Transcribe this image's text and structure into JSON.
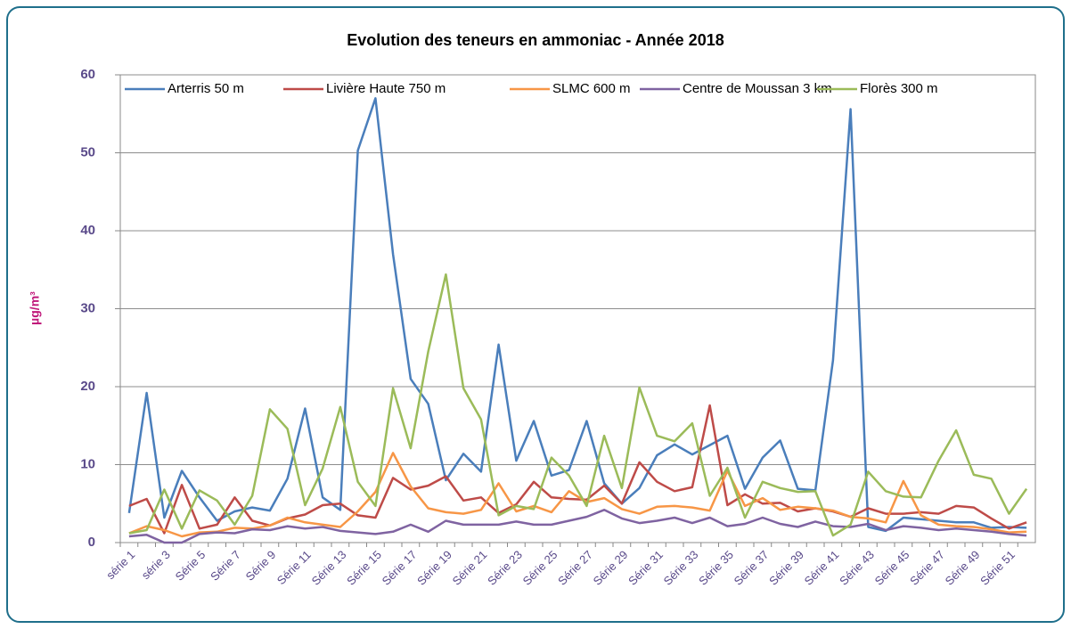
{
  "chart_data": {
    "type": "line",
    "title": "Evolution des teneurs en ammoniac - Année 2018",
    "y_label": "µg/m³",
    "categories": [
      "série 1",
      null,
      "série 3",
      null,
      "Série 5",
      null,
      "Série 7",
      null,
      "Série 9",
      null,
      "Série 11",
      null,
      "Série 13",
      null,
      "Série 15",
      null,
      "Série 17",
      null,
      "Série 19",
      null,
      "Série 21",
      null,
      "Série 23",
      null,
      "Série 25",
      null,
      "Série 27",
      null,
      "Série 29",
      null,
      "Série 31",
      null,
      "Série 33",
      null,
      "Série 35",
      null,
      "Série 37",
      null,
      "Série 39",
      null,
      "Série 41",
      null,
      "Série 43",
      null,
      "Série 45",
      null,
      "Série 47",
      null,
      "Série 49",
      null,
      "Série 51",
      null
    ],
    "series": [
      {
        "name": "Arterris 50 m",
        "color": "#4a7ebb",
        "values": [
          3.8,
          19.2,
          3.2,
          9.2,
          5.8,
          2.8,
          4,
          4.5,
          4.1,
          8.2,
          17.2,
          5.8,
          4.2,
          50.3,
          57,
          37,
          21,
          17.8,
          8,
          11.4,
          9.1,
          25.4,
          10.5,
          15.6,
          8.6,
          9.3,
          15.6,
          7.6,
          5,
          7,
          11.2,
          12.6,
          11.3,
          12.5,
          13.7,
          6.9,
          10.9,
          13.1,
          6.9,
          6.7,
          23.4,
          55.6,
          2,
          1.5,
          3.2,
          3,
          2.8,
          2.6,
          2.6,
          1.9,
          2,
          1.9
        ]
      },
      {
        "name": "Livière Haute 750 m",
        "color": "#be4b48",
        "values": [
          4.7,
          5.6,
          1.2,
          7.4,
          1.8,
          2.3,
          5.8,
          2.8,
          2.2,
          3.1,
          3.6,
          4.8,
          5,
          3.5,
          3.2,
          8.3,
          6.8,
          7.3,
          8.5,
          5.4,
          5.8,
          3.8,
          4.9,
          7.8,
          5.8,
          5.6,
          5.5,
          7.3,
          5,
          10.3,
          7.8,
          6.6,
          7.1,
          17.6,
          4.8,
          6.2,
          5,
          5.1,
          4,
          4.4,
          4,
          3.3,
          4.4,
          3.7,
          3.7,
          3.9,
          3.7,
          4.7,
          4.5,
          3.1,
          1.8,
          2.6
        ]
      },
      {
        "name": "SLMC 600 m",
        "color": "#f79646",
        "values": [
          1.2,
          2.1,
          1.6,
          0.8,
          1.3,
          1.4,
          1.9,
          1.8,
          2.2,
          3.2,
          2.6,
          2.3,
          2,
          4,
          6.5,
          11.5,
          7.2,
          4.4,
          3.9,
          3.7,
          4.2,
          7.6,
          4,
          4.7,
          3.9,
          6.6,
          5.2,
          5.7,
          4.3,
          3.7,
          4.6,
          4.7,
          4.5,
          4.1,
          9.2,
          4.7,
          5.7,
          4.2,
          4.6,
          4.4,
          4.1,
          3.3,
          3.1,
          2.6,
          7.9,
          3.5,
          2.3,
          2.1,
          2,
          1.7,
          1.3,
          1.4
        ]
      },
      {
        "name": "Centre de Moussan 3 km",
        "color": "#7f63a1",
        "values": [
          0.8,
          1,
          0,
          0,
          1.1,
          1.3,
          1.2,
          1.7,
          1.6,
          2.1,
          1.8,
          2,
          1.5,
          1.3,
          1.1,
          1.4,
          2.3,
          1.4,
          2.8,
          2.3,
          2.3,
          2.3,
          2.7,
          2.3,
          2.3,
          2.8,
          3.3,
          4.2,
          3.1,
          2.5,
          2.8,
          3.2,
          2.5,
          3.2,
          2.1,
          2.4,
          3.2,
          2.4,
          2,
          2.7,
          2.1,
          2,
          2.4,
          1.6,
          2.1,
          1.9,
          1.6,
          1.8,
          1.6,
          1.4,
          1.1,
          0.9
        ]
      },
      {
        "name": "Florès 300 m",
        "color": "#9bbb59",
        "values": [
          1.2,
          1.6,
          6.8,
          1.8,
          6.7,
          5.4,
          2.3,
          6,
          17.1,
          14.6,
          4.8,
          9.5,
          17.4,
          7.8,
          4.7,
          19.8,
          12.1,
          24.5,
          34.4,
          19.8,
          15.8,
          3.5,
          4.7,
          4.3,
          10.9,
          8.6,
          4.7,
          13.7,
          7,
          19.9,
          13.7,
          13,
          15.3,
          6,
          9.6,
          3.2,
          7.8,
          7,
          6.5,
          6.6,
          0.9,
          2.3,
          9.1,
          6.6,
          5.9,
          5.8,
          10.5,
          14.4,
          8.7,
          8.2,
          3.7,
          6.9
        ]
      }
    ],
    "ylim": [
      0,
      60
    ],
    "yticks": [
      0,
      10,
      20,
      30,
      40,
      50,
      60
    ],
    "grid": true,
    "legend": "top"
  }
}
